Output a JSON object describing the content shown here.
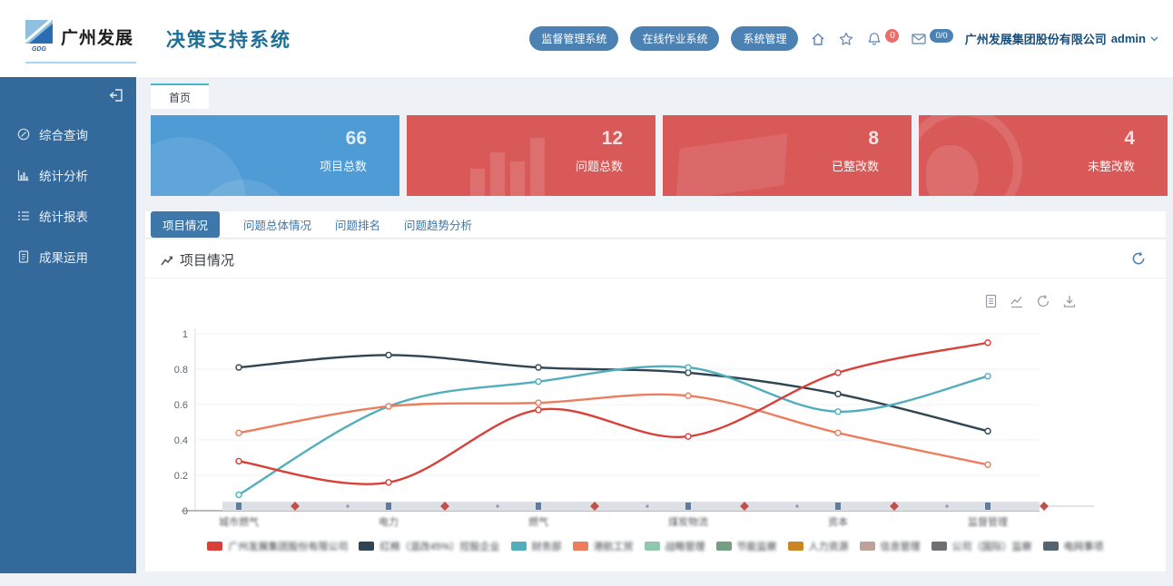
{
  "header": {
    "logo_text": "广州发展",
    "logo_sub": "GDG",
    "title": "决策支持系统",
    "pills": [
      {
        "label": "监督管理系统"
      },
      {
        "label": "在线作业系统"
      },
      {
        "label": "系统管理"
      }
    ],
    "bell_badge": "0",
    "mail_badge": "0/0",
    "company": "广州发展集团股份有限公司",
    "user": "admin"
  },
  "sidebar": {
    "items": [
      {
        "label": "综合查询"
      },
      {
        "label": "统计分析"
      },
      {
        "label": "统计报表"
      },
      {
        "label": "成果运用"
      }
    ]
  },
  "page_tab": "首页",
  "cards": [
    {
      "value": "66",
      "label": "项目总数",
      "color": "#4e9bd5"
    },
    {
      "value": "12",
      "label": "问题总数",
      "color": "#d95858"
    },
    {
      "value": "8",
      "label": "已整改数",
      "color": "#d95858"
    },
    {
      "value": "4",
      "label": "未整改数",
      "color": "#d95858"
    }
  ],
  "tabs": [
    {
      "label": "项目情况",
      "active": true
    },
    {
      "label": "问题总体情况",
      "active": false
    },
    {
      "label": "问题排名",
      "active": false
    },
    {
      "label": "问题趋势分析",
      "active": false
    }
  ],
  "panel": {
    "title": "项目情况"
  },
  "chart_data": {
    "type": "line",
    "title": "项目情况",
    "ylim": [
      0,
      1
    ],
    "ytick_labels": [
      "1",
      "0.8",
      "0.6",
      "0.4",
      "0.2",
      "0"
    ],
    "grid": true,
    "legend_position": "bottom",
    "categories": [
      "城市燃气",
      "电力",
      "燃气",
      "煤炭物流",
      "资本",
      "监督管理"
    ],
    "categories_note": "x-axis labels are blurred/redacted in the source screenshot",
    "series": [
      {
        "name": "广州发展集团股份有限公司",
        "color": "#d94038",
        "values": [
          0.28,
          0.16,
          0.57,
          0.42,
          0.78,
          0.95
        ]
      },
      {
        "name": "红棉（混改45%）控股企业",
        "color": "#2f4554",
        "values": [
          0.81,
          0.88,
          0.81,
          0.78,
          0.66,
          0.45
        ]
      },
      {
        "name": "财务部",
        "color": "#52aebd",
        "values": [
          0.09,
          0.59,
          0.73,
          0.81,
          0.56,
          0.76
        ]
      },
      {
        "name": "港航工贸",
        "color": "#ec7e5e",
        "values": [
          0.44,
          0.59,
          0.61,
          0.65,
          0.44,
          0.26
        ]
      }
    ],
    "legend": [
      {
        "label": "广州发展集团股份有限公司",
        "color": "#d94038"
      },
      {
        "label": "红棉（混改45%）控股企业",
        "color": "#2f4554"
      },
      {
        "label": "财务部",
        "color": "#52aebd"
      },
      {
        "label": "港航工贸",
        "color": "#ec7e5e"
      },
      {
        "label": "战略管理",
        "color": "#91c7ae"
      },
      {
        "label": "节能监察",
        "color": "#749f83"
      },
      {
        "label": "人力资源",
        "color": "#ca8622"
      },
      {
        "label": "信息管理",
        "color": "#bda29a"
      },
      {
        "label": "公司（国际）监察",
        "color": "#6e7074"
      },
      {
        "label": "电网事项",
        "color": "#546570"
      }
    ],
    "legend_note": "legend labels are blurred/redacted in the source screenshot"
  }
}
